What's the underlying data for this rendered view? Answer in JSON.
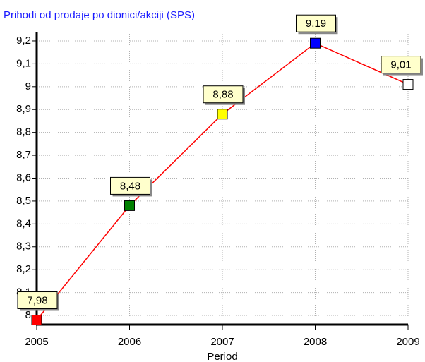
{
  "chart_data": {
    "type": "line",
    "title": "Prihodi od prodaje po dionici/akciji  (SPS)",
    "x_label": "Period",
    "x": [
      2005,
      2006,
      2007,
      2008,
      2009
    ],
    "xlim": [
      2005,
      2009
    ],
    "xticks": [
      2005,
      2006,
      2007,
      2008,
      2009
    ],
    "series": [
      {
        "name": "SPS",
        "color": "#ff0000",
        "values": [
          7.98,
          8.48,
          8.88,
          9.19,
          9.01
        ],
        "value_labels": [
          "7,98",
          "8,48",
          "8,88",
          "9,19",
          "9,01"
        ],
        "marker_colors": [
          "#ff0000",
          "#008000",
          "#ffff00",
          "#0000ff",
          "#ffffff"
        ]
      }
    ],
    "ylim": [
      7.96,
      9.24
    ],
    "yticks": [
      {
        "value": 8,
        "label": "8"
      },
      {
        "value": 8.1,
        "label": "8,1"
      },
      {
        "value": 8.2,
        "label": "8,2"
      },
      {
        "value": 8.3,
        "label": "8,3"
      },
      {
        "value": 8.4,
        "label": "8,4"
      },
      {
        "value": 8.5,
        "label": "8,5"
      },
      {
        "value": 8.6,
        "label": "8,6"
      },
      {
        "value": 8.7,
        "label": "8,7"
      },
      {
        "value": 8.8,
        "label": "8,8"
      },
      {
        "value": 8.9,
        "label": "8,9"
      },
      {
        "value": 9,
        "label": "9"
      },
      {
        "value": 9.1,
        "label": "9,1"
      },
      {
        "value": 9.2,
        "label": "9,2"
      }
    ],
    "grid": true
  }
}
